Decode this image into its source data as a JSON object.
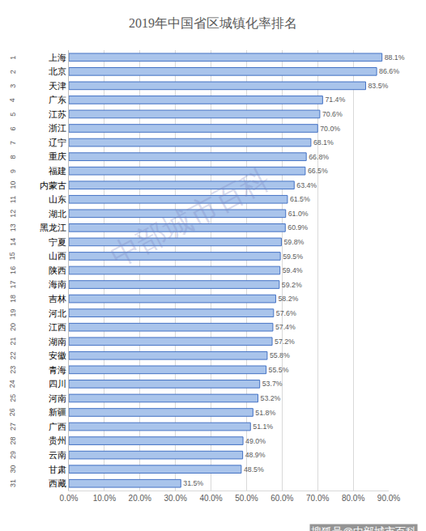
{
  "chart_data": {
    "type": "bar",
    "orientation": "horizontal",
    "title": "2019年中国省区城镇化率排名",
    "categories": [
      "上海",
      "北京",
      "天津",
      "广东",
      "江苏",
      "浙江",
      "辽宁",
      "重庆",
      "福建",
      "内蒙古",
      "山东",
      "湖北",
      "黑龙江",
      "宁夏",
      "山西",
      "陕西",
      "海南",
      "吉林",
      "河北",
      "江西",
      "湖南",
      "安徽",
      "青海",
      "四川",
      "河南",
      "新疆",
      "广西",
      "贵州",
      "云南",
      "甘肃",
      "西藏"
    ],
    "ranks": [
      1,
      2,
      3,
      4,
      5,
      6,
      7,
      8,
      9,
      10,
      11,
      12,
      13,
      14,
      15,
      16,
      17,
      18,
      19,
      20,
      21,
      22,
      23,
      24,
      25,
      26,
      27,
      28,
      29,
      30,
      31
    ],
    "values": [
      88.1,
      86.6,
      83.5,
      71.4,
      70.6,
      70.0,
      68.1,
      66.8,
      66.5,
      63.4,
      61.5,
      61.0,
      60.9,
      59.8,
      59.5,
      59.4,
      59.2,
      58.2,
      57.6,
      57.4,
      57.2,
      55.8,
      55.5,
      53.7,
      53.2,
      51.8,
      51.1,
      49.0,
      48.9,
      48.5,
      31.5
    ],
    "value_labels": [
      "88.1%",
      "86.6%",
      "83.5%",
      "71.4%",
      "70.6%",
      "70.0%",
      "68.1%",
      "66.8%",
      "66.5%",
      "63.4%",
      "61.5%",
      "61.0%",
      "60.9%",
      "59.8%",
      "59.5%",
      "59.4%",
      "59.2%",
      "58.2%",
      "57.6%",
      "57.4%",
      "57.2%",
      "55.8%",
      "55.5%",
      "53.7%",
      "53.2%",
      "51.8%",
      "51.1%",
      "49.0%",
      "48.9%",
      "48.5%",
      "31.5%"
    ],
    "data_labels": true,
    "color": "#a9c4eb",
    "xlim": [
      0,
      90
    ],
    "xticks": [
      {
        "value": 0,
        "label": "0.0%"
      },
      {
        "value": 10,
        "label": "10.0%"
      },
      {
        "value": 20,
        "label": "20.0%"
      },
      {
        "value": 30,
        "label": "30.0%"
      },
      {
        "value": 40,
        "label": "40.0%"
      },
      {
        "value": 50,
        "label": "50.0%"
      },
      {
        "value": 60,
        "label": "60.0%"
      },
      {
        "value": 70,
        "label": "70.0%"
      },
      {
        "value": 80,
        "label": "80.0%"
      },
      {
        "value": 90,
        "label": "90.0%"
      }
    ],
    "grid": true,
    "annotations": [
      {
        "text": "中部城市百科"
      },
      {
        "text": "搜狐号@中部城市百科"
      }
    ]
  }
}
